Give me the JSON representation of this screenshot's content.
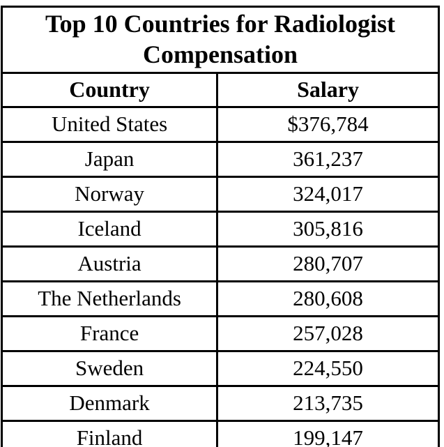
{
  "colors": {
    "background": "#ffffff",
    "text": "#000000",
    "border": "#000000"
  },
  "chart_data": {
    "type": "table",
    "title": "Top 10 Countries for Radiologist Compensation",
    "columns": [
      "Country",
      "Salary"
    ],
    "rows": [
      [
        "United States",
        "$376,784"
      ],
      [
        "Japan",
        "361,237"
      ],
      [
        "Norway",
        "324,017"
      ],
      [
        "Iceland",
        "305,816"
      ],
      [
        "Austria",
        "280,707"
      ],
      [
        "The Netherlands",
        "280,608"
      ],
      [
        "France",
        "257,028"
      ],
      [
        "Sweden",
        "224,550"
      ],
      [
        "Denmark",
        "213,735"
      ],
      [
        "Finland",
        "199,147"
      ]
    ],
    "salaries_usd": [
      376784,
      361237,
      324017,
      305816,
      280707,
      280608,
      257028,
      224550,
      213735,
      199147
    ],
    "currency": "USD",
    "layout": {
      "title_rows": 1,
      "header_rows": 1,
      "data_rows": 10,
      "grid": "full-borders"
    }
  }
}
